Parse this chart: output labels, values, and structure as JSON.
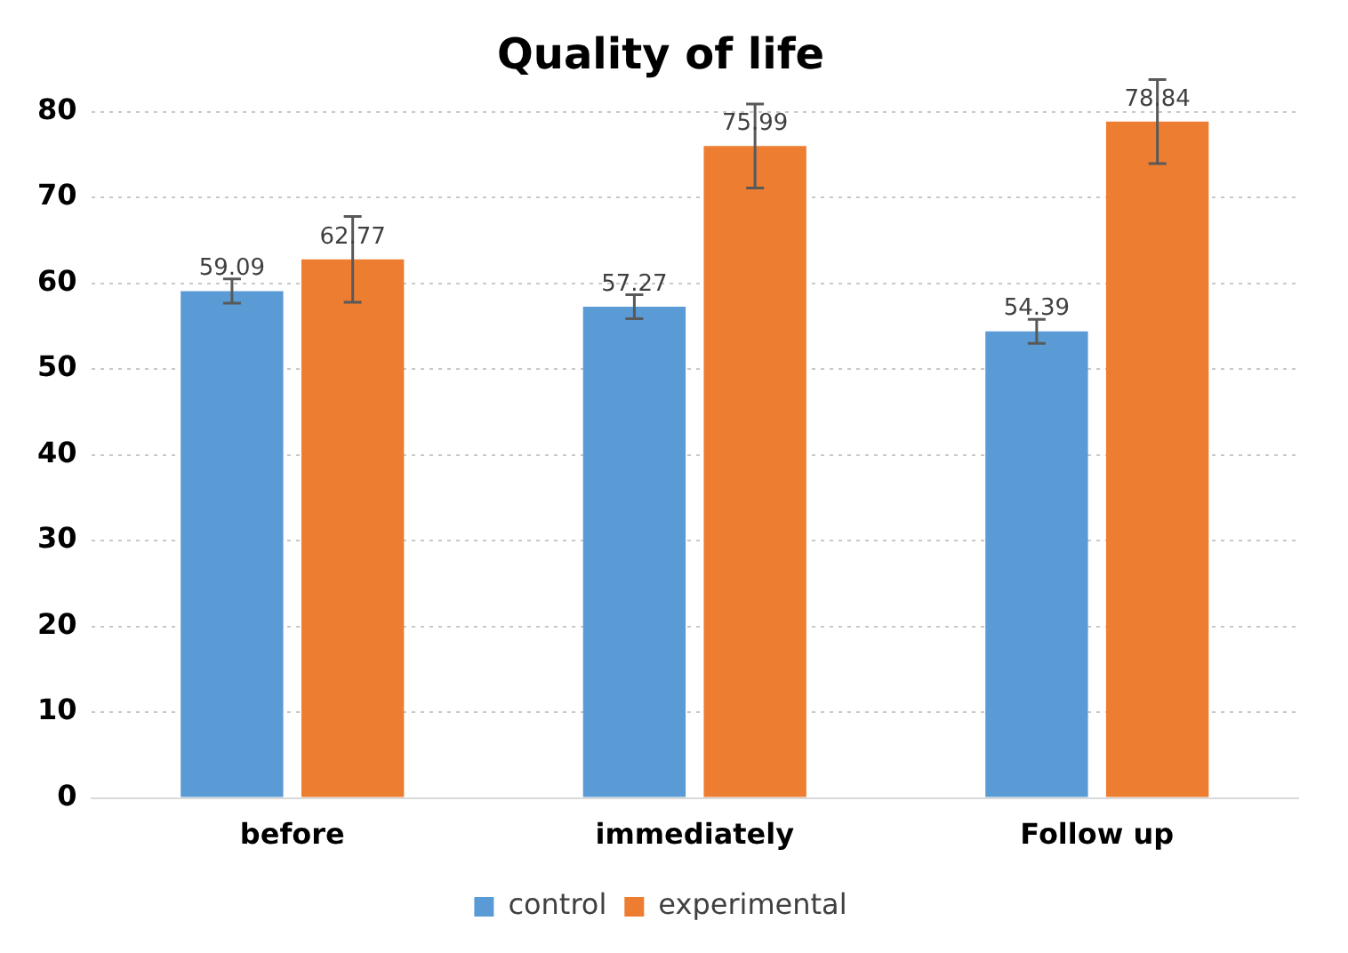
{
  "chart_data": {
    "type": "bar",
    "title": "Quality of life",
    "categories": [
      "before",
      "immediately",
      "Follow up"
    ],
    "series": [
      {
        "name": "control",
        "color": "#5b9bd5",
        "values": [
          59.09,
          57.27,
          54.39
        ],
        "errors": [
          1.4,
          1.4,
          1.4
        ]
      },
      {
        "name": "experimental",
        "color": "#ed7d31",
        "values": [
          62.77,
          75.99,
          78.84
        ],
        "errors": [
          5,
          4.9,
          4.9
        ]
      }
    ],
    "ylim": [
      0,
      80
    ],
    "yticks": [
      0,
      10,
      20,
      30,
      40,
      50,
      60,
      70,
      80
    ],
    "grid": "y",
    "legend": "bottom",
    "data_labels": true
  }
}
